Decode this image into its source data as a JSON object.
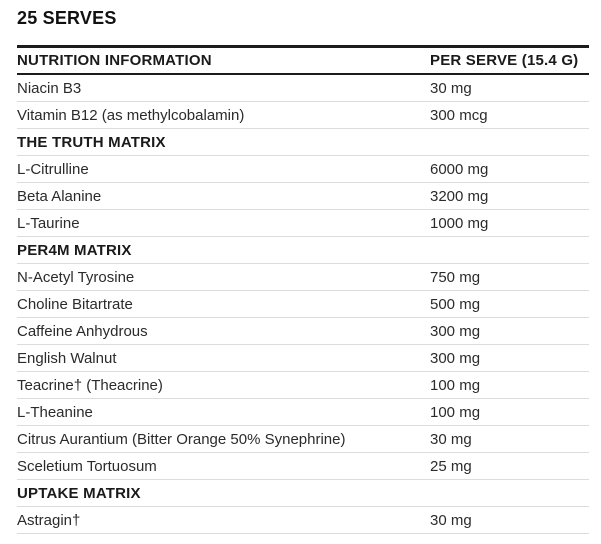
{
  "title": "25 SERVES",
  "table": {
    "header": {
      "col1": "NUTRITION INFORMATION",
      "col2": "PER SERVE (15.4 G)"
    },
    "rows": [
      {
        "type": "item",
        "name": "Niacin B3",
        "value": "30 mg"
      },
      {
        "type": "item",
        "name": "Vitamin B12 (as methylcobalamin)",
        "value": "300 mcg"
      },
      {
        "type": "section",
        "name": "THE TRUTH MATRIX",
        "value": ""
      },
      {
        "type": "item",
        "name": "L-Citrulline",
        "value": "6000 mg"
      },
      {
        "type": "item",
        "name": "Beta Alanine",
        "value": "3200 mg"
      },
      {
        "type": "item",
        "name": "L-Taurine",
        "value": "1000 mg"
      },
      {
        "type": "section",
        "name": "PER4M MATRIX",
        "value": ""
      },
      {
        "type": "item",
        "name": "N-Acetyl Tyrosine",
        "value": "750 mg"
      },
      {
        "type": "item",
        "name": "Choline Bitartrate",
        "value": "500 mg"
      },
      {
        "type": "item",
        "name": "Caffeine Anhydrous",
        "value": "300 mg"
      },
      {
        "type": "item",
        "name": "English Walnut",
        "value": "300 mg"
      },
      {
        "type": "item",
        "name": "Teacrine† (Theacrine)",
        "value": "100 mg"
      },
      {
        "type": "item",
        "name": "L-Theanine",
        "value": "100 mg"
      },
      {
        "type": "item",
        "name": "Citrus Aurantium (Bitter Orange 50% Synephrine)",
        "value": "30 mg"
      },
      {
        "type": "item",
        "name": "Sceletium Tortuosum",
        "value": "25 mg"
      },
      {
        "type": "section",
        "name": "UPTAKE MATRIX",
        "value": ""
      },
      {
        "type": "item",
        "name": "Astragin†",
        "value": "30 mg"
      }
    ],
    "colors": {
      "strong_border": "#1c1c1c",
      "light_border": "#dcdcdc",
      "heading_text": "#1a1a1a",
      "body_text": "#2b2b2b"
    }
  }
}
